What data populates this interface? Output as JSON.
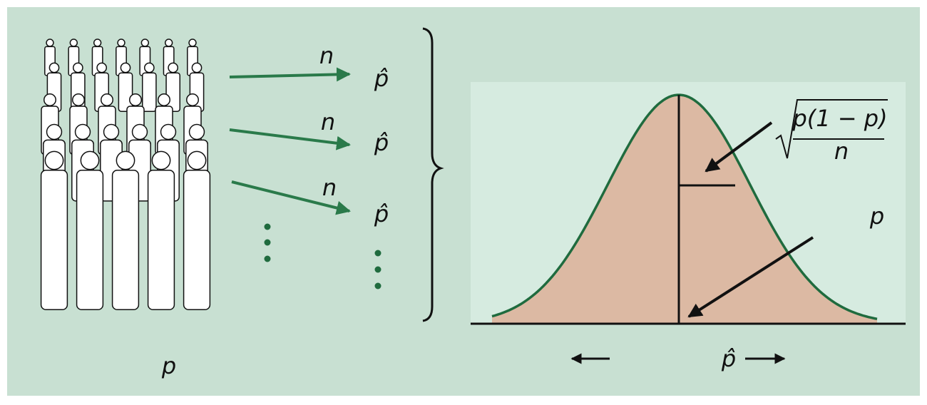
{
  "population": {
    "label": "p"
  },
  "samples": [
    {
      "size": "n",
      "statistic": "p̂"
    },
    {
      "size": "n",
      "statistic": "p̂"
    },
    {
      "size": "n",
      "statistic": "p̂"
    }
  ],
  "distribution": {
    "sd_numerator": "p(1 − p)",
    "sd_denominator": "n",
    "mean_label": "p",
    "axis_label": "p̂"
  }
}
